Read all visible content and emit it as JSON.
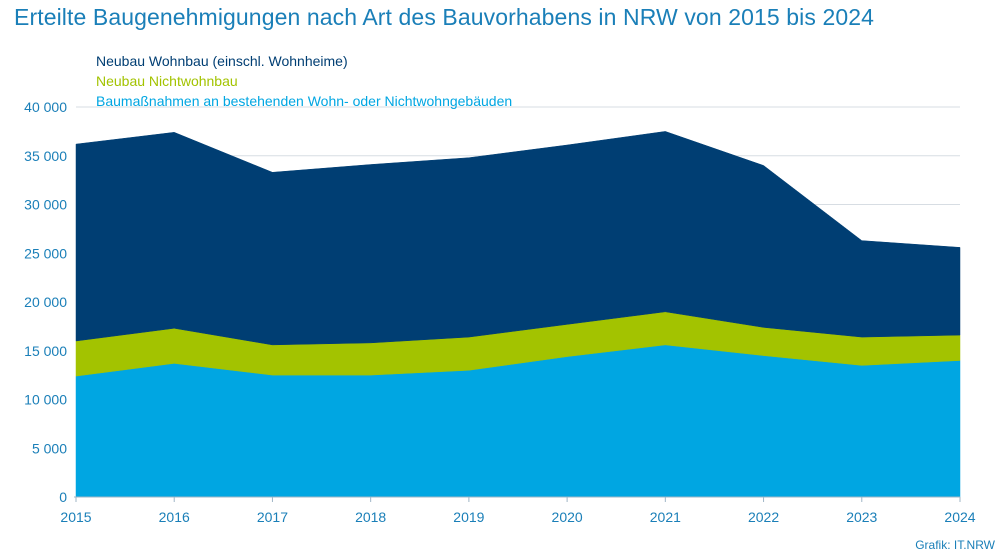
{
  "title": "Erteilte Baugenehmigungen nach Art des Bauvorhabens in NRW von 2015 bis 2024",
  "credit": "Grafik: IT.NRW",
  "chart_data": {
    "type": "area",
    "stacked": true,
    "x": [
      "2015",
      "2016",
      "2017",
      "2018",
      "2019",
      "2020",
      "2021",
      "2022",
      "2023",
      "2024"
    ],
    "ylim": [
      0,
      40000
    ],
    "yticks": [
      "0",
      "5 000",
      "10 000",
      "15 000",
      "20 000",
      "25 000",
      "30 000",
      "35 000",
      "40 000"
    ],
    "grid": true,
    "legend_position": "top-left",
    "series": [
      {
        "name": "Baumaßnahmen an bestehenden Wohn- oder Nichtwohngebäuden",
        "color": "#00a6e2",
        "values": [
          12400,
          13700,
          12500,
          12500,
          13000,
          14400,
          15600,
          14500,
          13500,
          14000
        ]
      },
      {
        "name": "Neubau Nichtwohnbau",
        "color": "#a3c300",
        "values": [
          3600,
          3600,
          3100,
          3300,
          3400,
          3300,
          3400,
          2900,
          2900,
          2600
        ]
      },
      {
        "name": "Neubau Wohnbau (einschl. Wohnheime)",
        "color": "#003e73",
        "values": [
          20200,
          20100,
          17700,
          18300,
          18400,
          18400,
          18500,
          16600,
          9900,
          9000
        ]
      }
    ],
    "legend": [
      {
        "name": "Neubau Wohnbau (einschl. Wohnheime)",
        "color": "#003e73"
      },
      {
        "name": "Neubau Nichtwohnbau",
        "color": "#a3c300"
      },
      {
        "name": "Baumaßnahmen an bestehenden Wohn- oder Nichtwohngebäuden",
        "color": "#00a6e2"
      }
    ]
  }
}
